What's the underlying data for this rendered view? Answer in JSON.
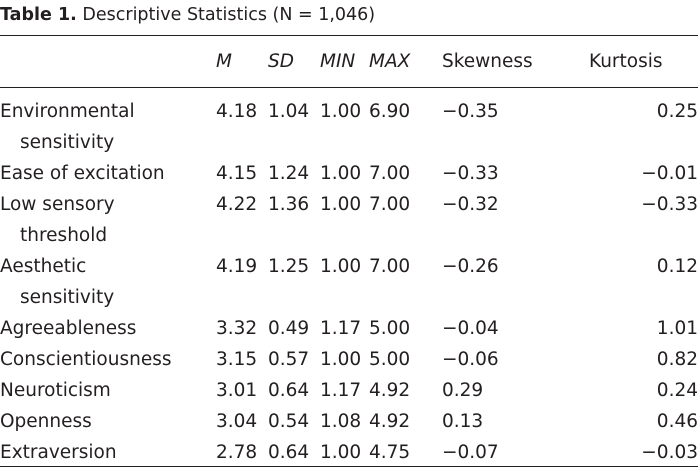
{
  "caption": {
    "label": "Table 1.",
    "title": "Descriptive Statistics (N = 1,046)"
  },
  "table": {
    "columns": [
      "M",
      "SD",
      "MIN",
      "MAX",
      "Skewness",
      "Kurtosis"
    ],
    "rows": [
      {
        "variable": [
          "Environmental",
          "sensitivity"
        ],
        "M": "4.18",
        "SD": "1.04",
        "MIN": "1.00",
        "MAX": "6.90",
        "Skewness": "−0.35",
        "Kurtosis": "0.25"
      },
      {
        "variable": [
          "Ease of excitation"
        ],
        "M": "4.15",
        "SD": "1.24",
        "MIN": "1.00",
        "MAX": "7.00",
        "Skewness": "−0.33",
        "Kurtosis": "−0.01"
      },
      {
        "variable": [
          "Low sensory",
          "threshold"
        ],
        "M": "4.22",
        "SD": "1.36",
        "MIN": "1.00",
        "MAX": "7.00",
        "Skewness": "−0.32",
        "Kurtosis": "−0.33"
      },
      {
        "variable": [
          "Aesthetic",
          "sensitivity"
        ],
        "M": "4.19",
        "SD": "1.25",
        "MIN": "1.00",
        "MAX": "7.00",
        "Skewness": "−0.26",
        "Kurtosis": "0.12"
      },
      {
        "variable": [
          "Agreeableness"
        ],
        "M": "3.32",
        "SD": "0.49",
        "MIN": "1.17",
        "MAX": "5.00",
        "Skewness": "−0.04",
        "Kurtosis": "1.01"
      },
      {
        "variable": [
          "Conscientiousness"
        ],
        "M": "3.15",
        "SD": "0.57",
        "MIN": "1.00",
        "MAX": "5.00",
        "Skewness": "−0.06",
        "Kurtosis": "0.82"
      },
      {
        "variable": [
          "Neuroticism"
        ],
        "M": "3.01",
        "SD": "0.64",
        "MIN": "1.17",
        "MAX": "4.92",
        "Skewness": "0.29",
        "Kurtosis": "0.24"
      },
      {
        "variable": [
          "Openness"
        ],
        "M": "3.04",
        "SD": "0.54",
        "MIN": "1.08",
        "MAX": "4.92",
        "Skewness": "0.13",
        "Kurtosis": "0.46"
      },
      {
        "variable": [
          "Extraversion"
        ],
        "M": "2.78",
        "SD": "0.64",
        "MIN": "1.00",
        "MAX": "4.75",
        "Skewness": "−0.07",
        "Kurtosis": "−0.03"
      }
    ]
  }
}
